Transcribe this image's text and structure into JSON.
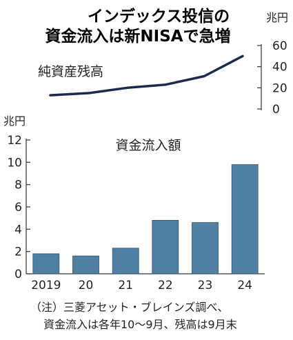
{
  "title_lines": [
    "インデックス投信の",
    "資金流入は新NISAで急増"
  ],
  "notes": [
    "（注）三菱アセット・ブレインズ調べ、",
    "資金流入は各年10～9月、残高は9月末"
  ],
  "colors": {
    "line": "#1c2a4f",
    "bar": "#4f7fa3",
    "axis": "#333333"
  },
  "chart_data": [
    {
      "type": "line",
      "series": [
        {
          "name": "純資産残高",
          "x": [
            "2019",
            "2020",
            "2021",
            "2022",
            "2023",
            "2024"
          ],
          "values": [
            13,
            15,
            20,
            23,
            31,
            50
          ]
        }
      ],
      "unit": "兆円",
      "ylim": [
        0,
        60
      ],
      "yticks": [
        "0",
        "20",
        "40",
        "60"
      ],
      "grid": false
    },
    {
      "type": "bar",
      "title": "資金流入額",
      "unit": "兆円",
      "categories": [
        "2019",
        "20",
        "21",
        "22",
        "23",
        "24"
      ],
      "values": [
        1.8,
        1.6,
        2.3,
        4.8,
        4.6,
        9.8
      ],
      "ylim": [
        0,
        12
      ],
      "yticks": [
        "0",
        "2",
        "4",
        "6",
        "8",
        "10",
        "12"
      ],
      "grid": false
    }
  ]
}
